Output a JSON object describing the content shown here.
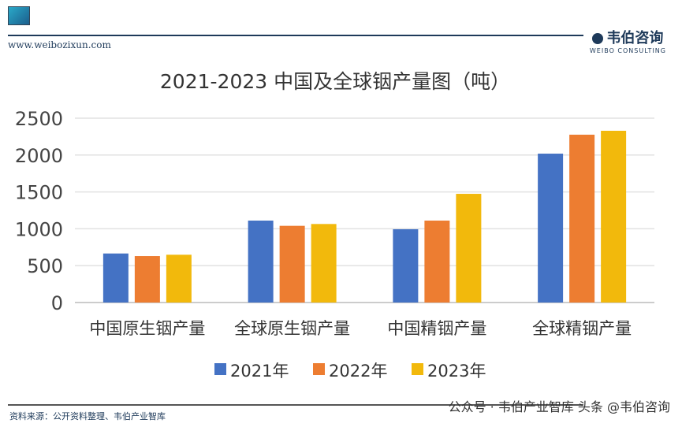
{
  "header": {
    "site": "www.weibozixun.com",
    "brand_cn": "韦伯咨询",
    "brand_en": "WEIBO CONSULTING"
  },
  "footer": {
    "source": "资料来源：公开资料整理、韦伯产业智库",
    "watermark": "公众号 · 韦伯产业智库  头条 @韦伯咨询"
  },
  "colors": {
    "2021": "#4472c4",
    "2022": "#ed7d31",
    "2023": "#f2b90c"
  },
  "chart_data": {
    "type": "bar",
    "title": "2021-2023 中国及全球铟产量图（吨）",
    "categories": [
      "中国原生铟产量",
      "全球原生铟产量",
      "中国精铟产量",
      "全球精铟产量"
    ],
    "series": [
      {
        "name": "2021年",
        "values": [
          665,
          1111,
          994,
          2019
        ]
      },
      {
        "name": "2022年",
        "values": [
          630,
          1040,
          1111,
          2276
        ]
      },
      {
        "name": "2023年",
        "values": [
          648,
          1065,
          1474,
          2329
        ]
      }
    ],
    "yticks": [
      "0",
      "500",
      "1000",
      "1500",
      "2000",
      "2500"
    ],
    "ylim": [
      0,
      2500
    ],
    "grid": true,
    "legend": "bottom",
    "xlabel": "",
    "ylabel": ""
  }
}
